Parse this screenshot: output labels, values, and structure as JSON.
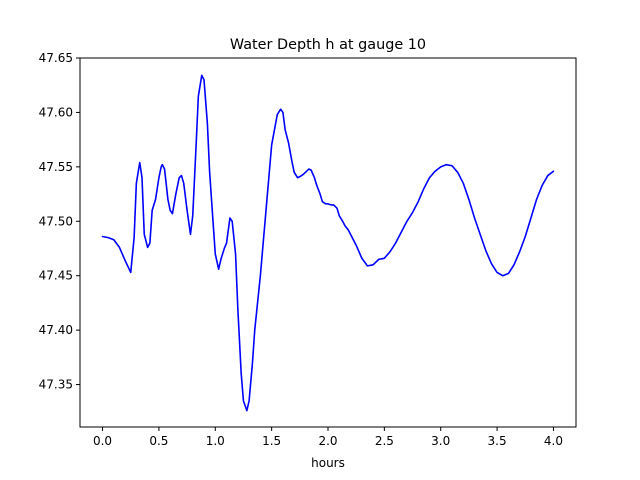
{
  "chart_data": {
    "type": "line",
    "title": "Water Depth h at gauge 10",
    "xlabel": "hours",
    "ylabel": "",
    "xlim": [
      -0.2,
      4.2
    ],
    "ylim": [
      47.311,
      47.65
    ],
    "xticks": [
      0.0,
      0.5,
      1.0,
      1.5,
      2.0,
      2.5,
      3.0,
      3.5,
      4.0
    ],
    "xtick_labels": [
      "0.0",
      "0.5",
      "1.0",
      "1.5",
      "2.0",
      "2.5",
      "3.0",
      "3.5",
      "4.0"
    ],
    "yticks": [
      47.35,
      47.4,
      47.45,
      47.5,
      47.55,
      47.6,
      47.65
    ],
    "ytick_labels": [
      "47.35",
      "47.40",
      "47.45",
      "47.50",
      "47.55",
      "47.60",
      "47.65"
    ],
    "grid": false,
    "series": [
      {
        "color": "#0000ff",
        "x": [
          0.0,
          0.05,
          0.1,
          0.15,
          0.2,
          0.25,
          0.28,
          0.3,
          0.33,
          0.35,
          0.37,
          0.4,
          0.42,
          0.44,
          0.47,
          0.5,
          0.52,
          0.53,
          0.55,
          0.58,
          0.6,
          0.62,
          0.65,
          0.68,
          0.7,
          0.72,
          0.75,
          0.78,
          0.8,
          0.83,
          0.85,
          0.88,
          0.9,
          0.93,
          0.95,
          0.98,
          1.0,
          1.03,
          1.05,
          1.08,
          1.1,
          1.13,
          1.15,
          1.18,
          1.2,
          1.23,
          1.25,
          1.28,
          1.3,
          1.33,
          1.35,
          1.38,
          1.4,
          1.45,
          1.5,
          1.55,
          1.58,
          1.6,
          1.62,
          1.65,
          1.68,
          1.7,
          1.73,
          1.75,
          1.78,
          1.8,
          1.83,
          1.85,
          1.88,
          1.9,
          1.93,
          1.95,
          1.98,
          2.0,
          2.03,
          2.05,
          2.08,
          2.1,
          2.13,
          2.15,
          2.18,
          2.2,
          2.25,
          2.3,
          2.35,
          2.4,
          2.45,
          2.5,
          2.55,
          2.6,
          2.65,
          2.7,
          2.75,
          2.8,
          2.85,
          2.9,
          2.95,
          3.0,
          3.05,
          3.1,
          3.15,
          3.2,
          3.25,
          3.3,
          3.35,
          3.4,
          3.45,
          3.5,
          3.55,
          3.6,
          3.65,
          3.7,
          3.75,
          3.8,
          3.85,
          3.9,
          3.95,
          4.0
        ],
        "y": [
          47.486,
          47.485,
          47.483,
          47.476,
          47.464,
          47.453,
          47.485,
          47.535,
          47.554,
          47.54,
          47.488,
          47.476,
          47.48,
          47.51,
          47.52,
          47.54,
          47.55,
          47.552,
          47.548,
          47.52,
          47.51,
          47.507,
          47.525,
          47.54,
          47.542,
          47.535,
          47.51,
          47.488,
          47.505,
          47.57,
          47.615,
          47.634,
          47.63,
          47.59,
          47.545,
          47.5,
          47.47,
          47.456,
          47.465,
          47.475,
          47.48,
          47.503,
          47.5,
          47.47,
          47.42,
          47.36,
          47.335,
          47.326,
          47.335,
          47.37,
          47.4,
          47.43,
          47.45,
          47.51,
          47.57,
          47.598,
          47.603,
          47.6,
          47.584,
          47.572,
          47.555,
          47.545,
          47.54,
          47.541,
          47.543,
          47.545,
          47.548,
          47.547,
          47.54,
          47.533,
          47.525,
          47.518,
          47.516,
          47.516,
          47.515,
          47.515,
          47.512,
          47.505,
          47.5,
          47.496,
          47.492,
          47.488,
          47.478,
          47.466,
          47.459,
          47.46,
          47.465,
          47.466,
          47.472,
          47.48,
          47.49,
          47.5,
          47.508,
          47.518,
          47.53,
          47.54,
          47.546,
          47.55,
          47.552,
          47.551,
          47.545,
          47.535,
          47.52,
          47.503,
          47.488,
          47.473,
          47.461,
          47.453,
          47.45,
          47.452,
          47.46,
          47.472,
          47.486,
          47.503,
          47.52,
          47.533,
          47.542,
          47.546
        ]
      }
    ]
  }
}
